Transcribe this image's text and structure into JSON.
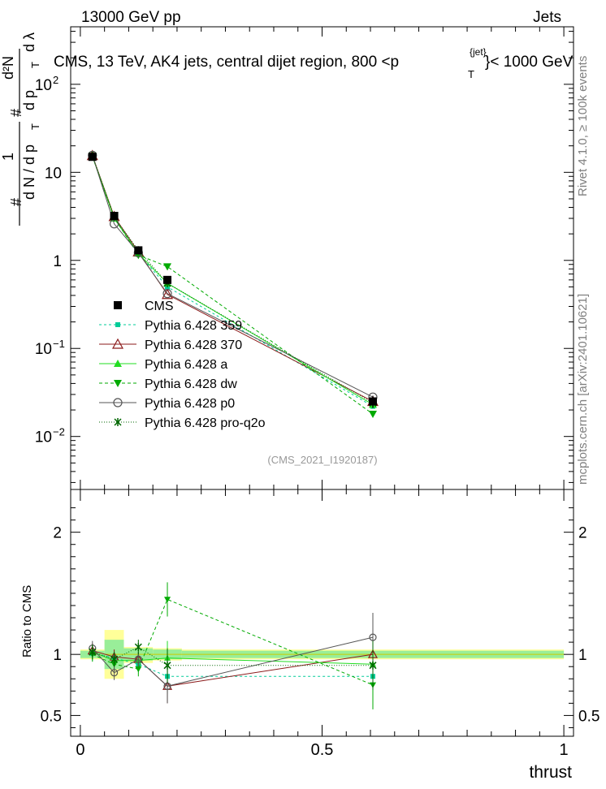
{
  "header": {
    "left": "13000 GeV pp",
    "right": "Jets"
  },
  "side_labels": {
    "rivet": "Rivet 4.1.0, ≥ 100k events",
    "mcplots": "mcplots.cern.ch [arXiv:2401.10621]"
  },
  "chart_data": [
    {
      "type": "line",
      "title": "CMS, 13 TeV, AK4 jets, central dijet region, 800 <p",
      "title_sup": "{jet}",
      "title_sub": "T",
      "title_tail": "}< 1000 GeV",
      "watermark": "(CMS_2021_I1920187)",
      "ylabel": "1/N dN/dλ",
      "ylabel_parts": {
        "hash1": "#",
        "one": "1",
        "dN": "d N / d p",
        "T1": "T",
        "hash2": "#",
        "d2N": "d²N",
        "dpT": "d p",
        "T2": "T",
        "dlam": "d λ"
      },
      "yscale": "log",
      "ylim": [
        0.0025,
        450
      ],
      "xlim": [
        -0.02,
        1.02
      ],
      "ytick_labels": [
        {
          "v": 0.01,
          "base": "10",
          "exp": "−2"
        },
        {
          "v": 0.1,
          "base": "10",
          "exp": "−1"
        },
        {
          "v": 1,
          "base": "1",
          "exp": ""
        },
        {
          "v": 10,
          "base": "10",
          "exp": ""
        },
        {
          "v": 100,
          "base": "10",
          "exp": "2"
        }
      ],
      "x": [
        0.025,
        0.07,
        0.12,
        0.18,
        0.605
      ],
      "series": [
        {
          "name": "CMS",
          "color": "#000000",
          "marker": "square",
          "values": [
            15,
            3.2,
            1.3,
            0.6,
            0.025
          ],
          "errors": [
            0.3,
            0.1,
            0.05,
            0.03,
            0.004
          ]
        },
        {
          "name": "Pythia 6.428 359",
          "color": "#00cc99",
          "marker": "smallsquare",
          "dash": "3,3",
          "values": [
            15.2,
            3.1,
            1.2,
            0.5,
            0.022
          ]
        },
        {
          "name": "Pythia 6.428 370",
          "color": "#8b1a1a",
          "marker": "triangle-open",
          "dash": "",
          "values": [
            15.5,
            3.15,
            1.25,
            0.41,
            0.025
          ]
        },
        {
          "name": "Pythia 6.428 a",
          "color": "#22dd22",
          "marker": "triangle",
          "dash": "",
          "values": [
            15.3,
            3.0,
            1.2,
            0.55,
            0.023
          ]
        },
        {
          "name": "Pythia 6.428 dw",
          "color": "#00aa00",
          "marker": "triangle-down",
          "dash": "4,3",
          "values": [
            15.1,
            3.05,
            1.15,
            0.85,
            0.018
          ]
        },
        {
          "name": "Pythia 6.428 p0",
          "color": "#555555",
          "marker": "circle-open",
          "dash": "",
          "values": [
            15.6,
            2.6,
            1.22,
            0.42,
            0.028
          ]
        },
        {
          "name": "Pythia 6.428 pro-q2o",
          "color": "#006600",
          "marker": "star",
          "dash": "1,2",
          "values": [
            15.4,
            3.1,
            1.3,
            0.55,
            0.024
          ]
        }
      ]
    },
    {
      "type": "line",
      "ylabel": "Ratio to CMS",
      "xlabel": "thrust",
      "ylim": [
        0.33,
        2.35
      ],
      "xlim": [
        -0.02,
        1.02
      ],
      "ytick_labels": [
        "0.5",
        "1",
        "2"
      ],
      "yticks": [
        0.5,
        1,
        2
      ],
      "xtick_labels": [
        "0",
        "0.5",
        "1"
      ],
      "xticks": [
        0,
        0.5,
        1
      ],
      "x": [
        0.025,
        0.07,
        0.12,
        0.18,
        0.605
      ],
      "bins": [
        [
          0,
          0.05
        ],
        [
          0.05,
          0.09
        ],
        [
          0.09,
          0.15
        ],
        [
          0.15,
          0.21
        ],
        [
          0.21,
          1.0
        ]
      ],
      "band_yellow": [
        [
          0.96,
          1.04
        ],
        [
          0.8,
          1.2
        ],
        [
          0.93,
          1.06
        ],
        [
          0.95,
          1.05
        ],
        [
          0.96,
          1.04
        ]
      ],
      "band_green": [
        [
          0.97,
          1.03
        ],
        [
          0.88,
          1.12
        ],
        [
          0.95,
          1.05
        ],
        [
          0.96,
          1.04
        ],
        [
          0.97,
          1.03
        ]
      ],
      "series": [
        {
          "name": "Pythia 6.428 359",
          "values": [
            1.01,
            0.97,
            0.92,
            0.82,
            0.82
          ]
        },
        {
          "name": "Pythia 6.428 370",
          "values": [
            1.03,
            0.98,
            0.96,
            0.74,
            1.0
          ]
        },
        {
          "name": "Pythia 6.428 a",
          "values": [
            1.02,
            0.95,
            0.95,
            0.97,
            0.92
          ]
        },
        {
          "name": "Pythia 6.428 dw",
          "values": [
            1.0,
            0.92,
            0.88,
            1.45,
            0.75
          ]
        },
        {
          "name": "Pythia 6.428 p0",
          "values": [
            1.05,
            0.85,
            0.96,
            0.74,
            1.14
          ]
        },
        {
          "name": "Pythia 6.428 pro-q2o",
          "values": [
            1.02,
            0.96,
            1.06,
            0.91,
            0.91
          ]
        }
      ]
    }
  ]
}
